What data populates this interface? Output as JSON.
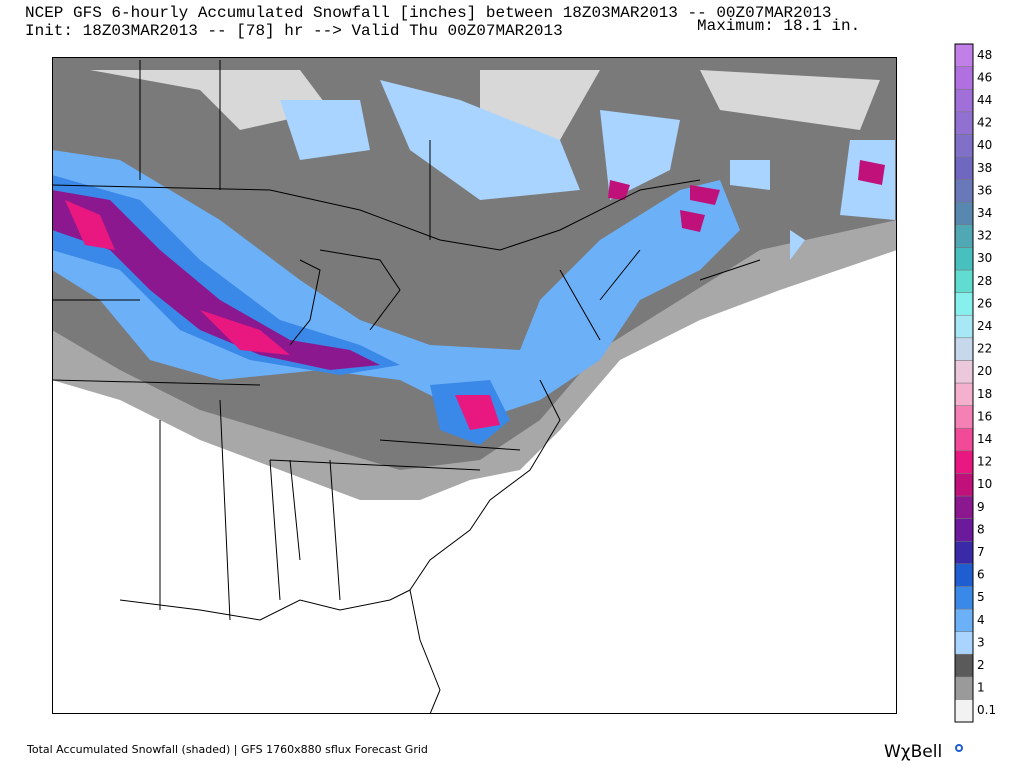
{
  "header": {
    "title": "NCEP GFS 6-hourly Accumulated Snowfall [inches] between 18Z03MAR2013 -- 00Z07MAR2013",
    "subtitle": "Init: 18Z03MAR2013 -- [78] hr --> Valid Thu 00Z07MAR2013",
    "maximum": "Maximum:  18.1 in."
  },
  "colorbar": {
    "labels": [
      "0.1",
      "1",
      "2",
      "3",
      "4",
      "5",
      "6",
      "7",
      "8",
      "9",
      "10",
      "12",
      "14",
      "16",
      "18",
      "20",
      "22",
      "24",
      "26",
      "28",
      "30",
      "32",
      "34",
      "36",
      "38",
      "40",
      "42",
      "44",
      "46",
      "48"
    ],
    "colors": [
      "#f2f2f2",
      "#9a9a9a",
      "#5a5a5a",
      "#a8d4ff",
      "#6cb0f8",
      "#3a88e8",
      "#1e5ed0",
      "#3a2aa8",
      "#6a1a9a",
      "#8c1890",
      "#c0107a",
      "#e81880",
      "#f04a98",
      "#f480b4",
      "#f4b0cc",
      "#ecc8dc",
      "#c8d8ec",
      "#a8e8f4",
      "#88f0ec",
      "#60dcd0",
      "#48c0c0",
      "#50a8b4",
      "#5888b0",
      "#6878b8",
      "#7068c0",
      "#8070c8",
      "#9070d0",
      "#a070d8",
      "#b070e0",
      "#c080e8"
    ]
  },
  "footer": {
    "caption": "Total Accumulated Snowfall (shaded) | GFS 1760x880 sflux Forecast Grid",
    "logo": "WχBell"
  }
}
